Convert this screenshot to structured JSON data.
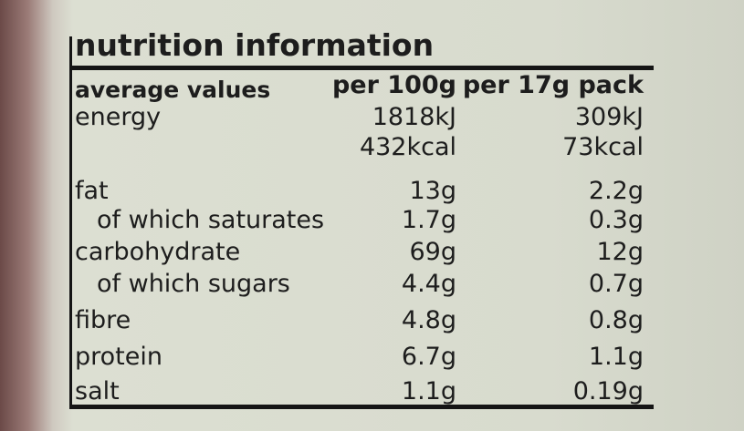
{
  "label": {
    "title": "nutrition information",
    "header": [
      "average values",
      "per 100g",
      "per 17g pack"
    ],
    "rows": [
      {
        "label": "energy",
        "values": [
          "1818kJ",
          "309kJ"
        ]
      },
      {
        "values": [
          "432kcal",
          "73kcal"
        ]
      },
      {
        "label": "fat",
        "values": [
          "13g",
          "2.2g"
        ]
      },
      {
        "label": "of which saturates",
        "values": [
          "1.7g",
          "0.3g"
        ],
        "indent": true
      },
      {
        "label": "carbohydrate",
        "values": [
          "69g",
          "12g"
        ]
      },
      {
        "label": "of which sugars",
        "values": [
          "4.4g",
          "0.7g"
        ],
        "indent": true
      },
      {
        "label": "fibre",
        "values": [
          "4.8g",
          "0.8g"
        ]
      },
      {
        "label": "protein",
        "values": [
          "6.7g",
          "1.1g"
        ]
      },
      {
        "label": "salt",
        "values": [
          "1.1g",
          "0.19g"
        ]
      }
    ]
  }
}
